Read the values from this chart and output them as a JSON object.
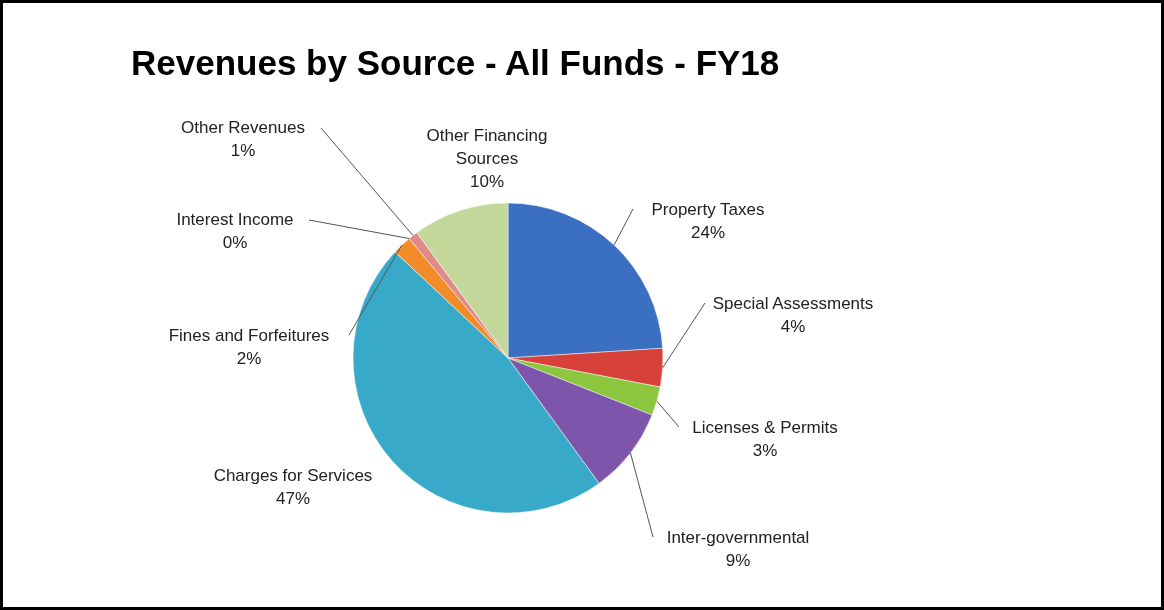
{
  "chart_data": {
    "type": "pie",
    "title": "Revenues by Source - All Funds - FY18",
    "categories": [
      "Property Taxes",
      "Special Assessments",
      "Licenses & Permits",
      "Inter-governmental",
      "Charges for Services",
      "Fines and Forfeitures",
      "Interest Income",
      "Other Revenues",
      "Other Financing Sources"
    ],
    "values": [
      24,
      4,
      3,
      9,
      47,
      2,
      0,
      1,
      10
    ],
    "value_labels": [
      "24%",
      "4%",
      "3%",
      "9%",
      "47%",
      "2%",
      "0%",
      "1%",
      "10%"
    ],
    "colors": [
      "#3b6fc0",
      "#d8403a",
      "#8cc63f",
      "#7d55aa",
      "#38a9c9",
      "#f28c28",
      "#2f5597",
      "#e08a8a",
      "#c4d79b"
    ]
  }
}
